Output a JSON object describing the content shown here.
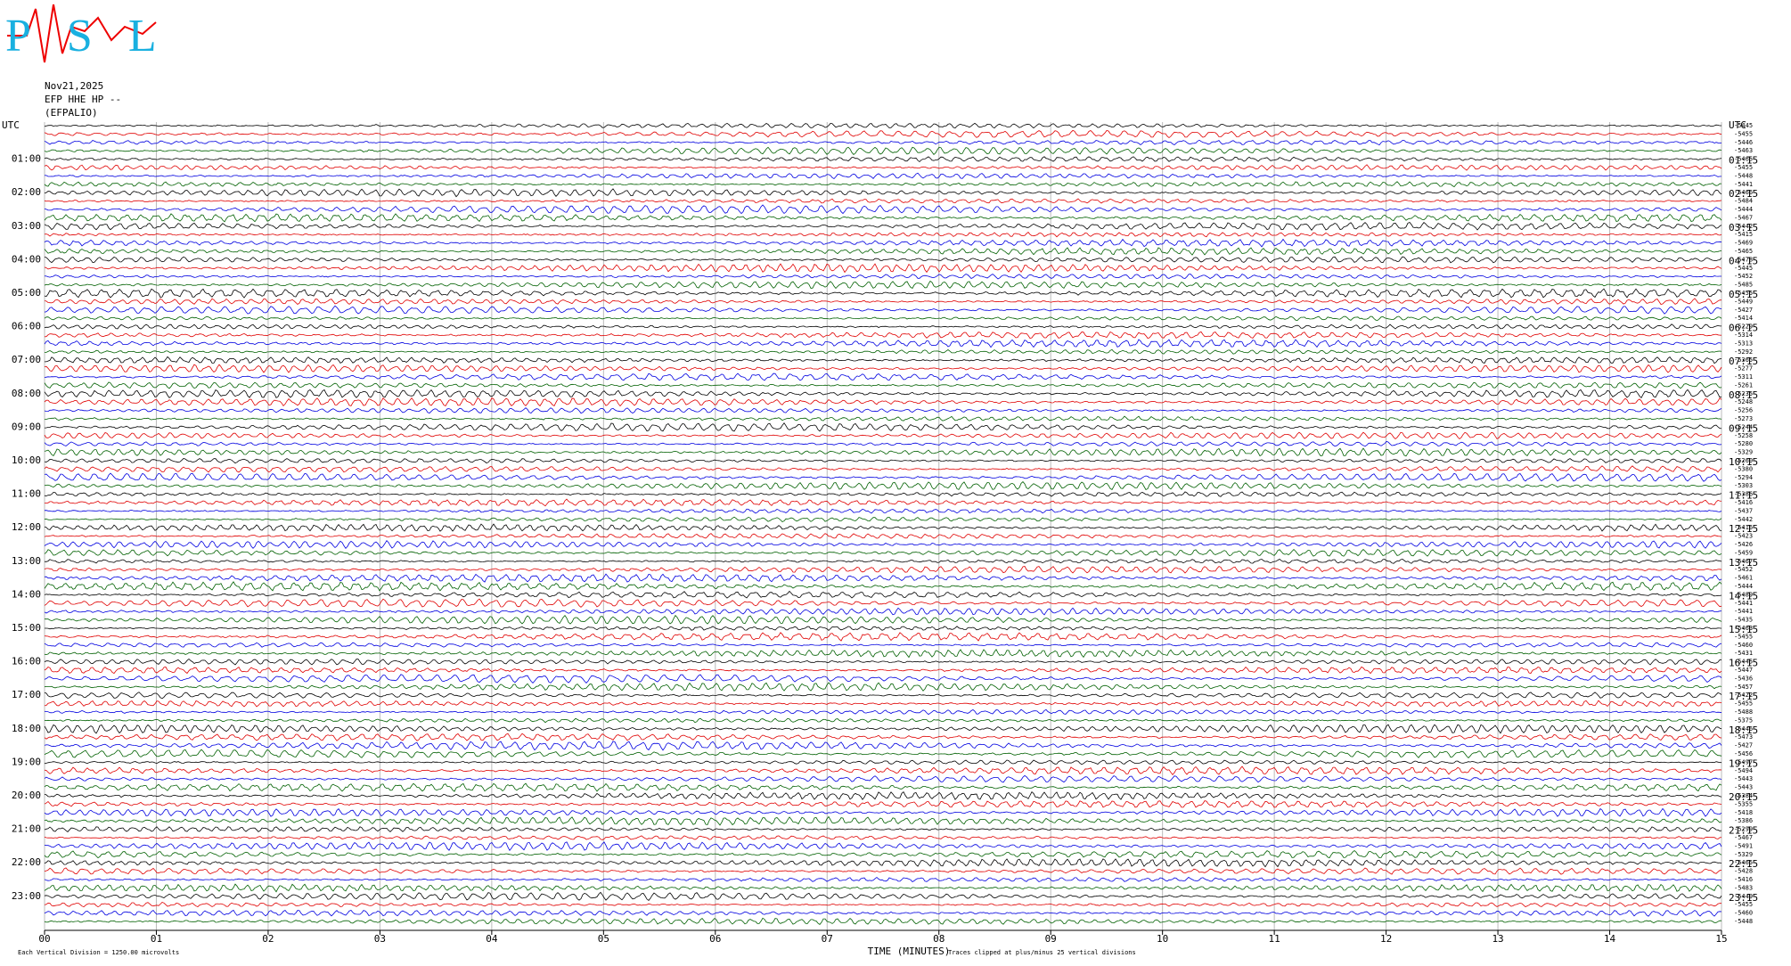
{
  "chart_data": {
    "type": "helicorder",
    "logo": "PSL",
    "date": "Nov21,2025",
    "station": "EFP HHE HP --",
    "site": "(EFPALIO)",
    "x_label": "TIME (MINUTES)",
    "scale_note": "Each Vertical Division = 1250.00 microvolts",
    "clip_note": "Traces clipped at plus/minus 25 vertical divisions",
    "xlim": [
      0,
      15
    ],
    "xticks": [
      {
        "value": 0,
        "label": "00"
      },
      {
        "value": 1,
        "label": "01"
      },
      {
        "value": 2,
        "label": "02"
      },
      {
        "value": 3,
        "label": "03"
      },
      {
        "value": 4,
        "label": "04"
      },
      {
        "value": 5,
        "label": "05"
      },
      {
        "value": 6,
        "label": "06"
      },
      {
        "value": 7,
        "label": "07"
      },
      {
        "value": 8,
        "label": "08"
      },
      {
        "value": 9,
        "label": "09"
      },
      {
        "value": 10,
        "label": "10"
      },
      {
        "value": 11,
        "label": "11"
      },
      {
        "value": 12,
        "label": "12"
      },
      {
        "value": 13,
        "label": "13"
      },
      {
        "value": 14,
        "label": "14"
      },
      {
        "value": 15,
        "label": "15"
      }
    ],
    "left_labels": [
      "UTC",
      "01:00",
      "02:00",
      "03:00",
      "04:00",
      "05:00",
      "06:00",
      "07:00",
      "08:00",
      "09:00",
      "10:00",
      "11:00",
      "12:00",
      "13:00",
      "14:00",
      "15:00",
      "16:00",
      "17:00",
      "18:00",
      "19:00",
      "20:00",
      "21:00",
      "22:00",
      "23:00"
    ],
    "right_labels": [
      "UTC",
      "01:15",
      "02:15",
      "03:15",
      "04:15",
      "05:15",
      "06:15",
      "07:15",
      "08:15",
      "09:15",
      "10:15",
      "11:15",
      "12:15",
      "13:15",
      "14:15",
      "15:15",
      "16:15",
      "17:15",
      "18:15",
      "19:15",
      "20:15",
      "21:15",
      "22:15",
      "23:15"
    ],
    "trace_colors": [
      "#000000",
      "#e00000",
      "#0000e0",
      "#006000"
    ],
    "trace_offsets": [
      -5445,
      -5455,
      -5446,
      -5463,
      -5465,
      -5455,
      -5448,
      -5441,
      -5466,
      -5484,
      -5444,
      -5467,
      -5442,
      -5415,
      -5469,
      -5465,
      -5478,
      -5445,
      -5452,
      -5485,
      -5455,
      -5449,
      -5427,
      -5414,
      -5229,
      -5314,
      -5313,
      -5292,
      -5365,
      -5277,
      -5311,
      -5261,
      -5235,
      -5248,
      -5256,
      -5273,
      -5244,
      -5258,
      -5280,
      -5329,
      -5260,
      -5380,
      -5294,
      -5303,
      -5386,
      -5416,
      -5437,
      -5442,
      -5416,
      -5423,
      -5426,
      -5459,
      -5467,
      -5452,
      -5461,
      -5444,
      -5489,
      -5441,
      -5441,
      -5435,
      -5463,
      -5455,
      -5460,
      -5431,
      -5445,
      -5447,
      -5436,
      -5457,
      -5422,
      -5455,
      -5488,
      -5375,
      -5446,
      -5473,
      -5427,
      -5456,
      -5497,
      -5494,
      -5443,
      -5443,
      -5384,
      -5355,
      -5418,
      -5386,
      -5299,
      -5467,
      -5491,
      -5329,
      -5465,
      -5428,
      -5416,
      -5483,
      -5449,
      -5455,
      -5460,
      -5448
    ]
  }
}
